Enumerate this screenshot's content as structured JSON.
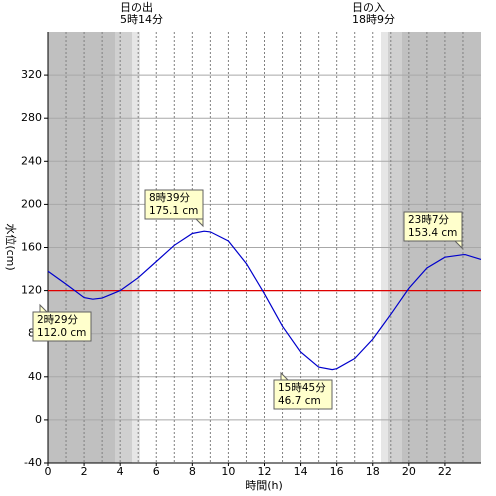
{
  "chart_data": {
    "type": "line",
    "xlabel": "時間(h)",
    "ylabel": "水位(cm)",
    "sunrise": {
      "title": "日の出",
      "time": "5時14分"
    },
    "sunset": {
      "title": "日の入",
      "time": "18時9分"
    },
    "xlim": [
      0,
      24
    ],
    "ylim": [
      -40,
      360
    ],
    "xticks": [
      0,
      2,
      4,
      6,
      8,
      10,
      12,
      14,
      16,
      18,
      20,
      22
    ],
    "minor_xticks": [
      1,
      3,
      5,
      7,
      9,
      11,
      13,
      15,
      17,
      19,
      21,
      23
    ],
    "yticks": [
      -40,
      0,
      40,
      80,
      120,
      160,
      200,
      240,
      280,
      320
    ],
    "grid": true,
    "reference_line": {
      "value": 120,
      "color": "#e00000"
    },
    "series": [
      {
        "color": "#0000cc",
        "x": [
          0,
          1,
          2,
          2.483,
          3,
          4,
          5,
          6,
          7,
          8,
          8.65,
          9,
          10,
          11,
          12,
          13,
          14,
          15,
          15.75,
          16,
          17,
          18,
          19,
          20,
          21,
          22,
          23,
          23.117,
          24
        ],
        "values": [
          138,
          126,
          113.5,
          112.0,
          113,
          120,
          132,
          147,
          162,
          173,
          175.1,
          174.5,
          166,
          145,
          117,
          87,
          63,
          49,
          46.7,
          47.5,
          57,
          75,
          98,
          122,
          141,
          151,
          153.3,
          153.4,
          149
        ]
      }
    ],
    "annotations": [
      {
        "x": 2.483,
        "y": 112.0,
        "time_label": "2時29分",
        "level_label": "112.0 cm"
      },
      {
        "x": 8.65,
        "y": 175.1,
        "time_label": "8時39分",
        "level_label": "175.1 cm"
      },
      {
        "x": 15.75,
        "y": 46.7,
        "time_label": "15時45分",
        "level_label": "46.7 cm"
      },
      {
        "x": 23.117,
        "y": 153.4,
        "time_label": "23時7分",
        "level_label": "153.4 cm"
      }
    ]
  }
}
